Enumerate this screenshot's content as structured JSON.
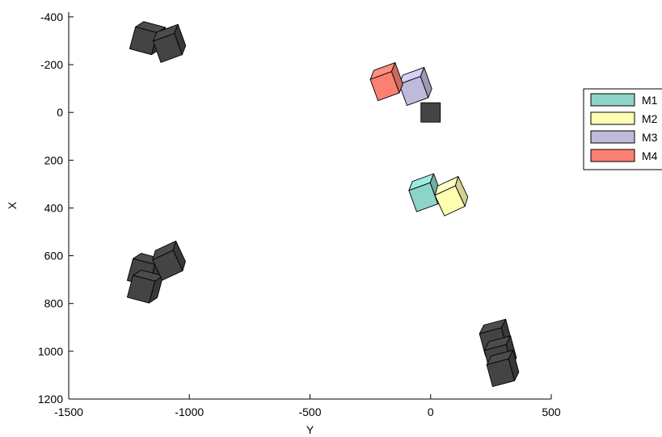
{
  "chart_data": {
    "type": "scatter",
    "title": "",
    "xlabel": "Y",
    "ylabel": "X",
    "xlim": [
      -1500,
      500
    ],
    "ylim": [
      -420,
      1200
    ],
    "y_reversed": true,
    "x_ticks": [
      "-1500",
      "-1000",
      "-500",
      "0",
      "500"
    ],
    "x_tick_values": [
      -1500,
      -1000,
      -500,
      0,
      500
    ],
    "y_ticks": [
      "-400",
      "-200",
      "0",
      "200",
      "400",
      "600",
      "800",
      "1000",
      "1200"
    ],
    "y_tick_values": [
      -400,
      -200,
      0,
      200,
      400,
      600,
      800,
      1000,
      1200
    ],
    "grid": false,
    "box": false,
    "legend_position": "right",
    "legend": [
      {
        "label": "M1",
        "color": "#8dd3c7"
      },
      {
        "label": "M2",
        "color": "#ffffb3"
      },
      {
        "label": "M3",
        "color": "#bebada"
      },
      {
        "label": "M4",
        "color": "#fb8072"
      }
    ],
    "highlighted_cubes": [
      {
        "series": "M1",
        "y": -30,
        "x": 355,
        "rot": -20,
        "color": "#8dd3c7"
      },
      {
        "series": "M2",
        "y": 80,
        "x": 370,
        "rot": -25,
        "color": "#ffffb3"
      },
      {
        "series": "M3",
        "y": -70,
        "x": -90,
        "rot": -20,
        "color": "#bebada"
      },
      {
        "series": "M4",
        "y": -190,
        "x": -110,
        "rot": -20,
        "color": "#fb8072"
      }
    ],
    "obstacles_color": "#444444",
    "obstacles": [
      {
        "y": 0,
        "x": 0,
        "rot": 0,
        "flat": true
      },
      {
        "y": -1190,
        "x": -300,
        "rot": 15
      },
      {
        "y": -1090,
        "x": -270,
        "rot": -20
      },
      {
        "y": -1200,
        "x": 670,
        "rot": 15
      },
      {
        "y": -1200,
        "x": 740,
        "rot": 15
      },
      {
        "y": -1090,
        "x": 640,
        "rot": -25
      },
      {
        "y": 260,
        "x": 960,
        "rot": -15
      },
      {
        "y": 280,
        "x": 1030,
        "rot": -15
      },
      {
        "y": 290,
        "x": 1090,
        "rot": -15
      }
    ]
  }
}
